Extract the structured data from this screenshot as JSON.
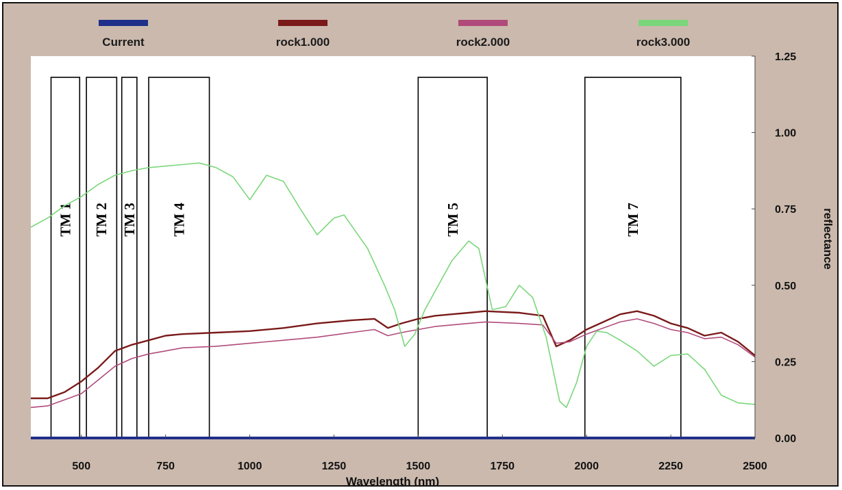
{
  "chart_data": {
    "type": "line",
    "xlabel": "Wavelength (nm)",
    "ylabel": "reflectance",
    "xlim": [
      350,
      2500
    ],
    "ylim": [
      0,
      1.25
    ],
    "x_ticks": [
      500,
      750,
      1000,
      1250,
      1500,
      1750,
      2000,
      2250,
      2500
    ],
    "x_tick_labels": [
      "500",
      "750",
      "1000",
      "1250",
      "1500",
      "1750",
      "2000",
      "2250",
      "2500"
    ],
    "y_ticks": [
      0,
      0.25,
      0.5,
      0.75,
      1.0,
      1.25
    ],
    "y_tick_labels": [
      "0.00",
      "0.25",
      "0.50",
      "0.75",
      "1.00",
      "1.25"
    ],
    "legend_position": "top",
    "series": [
      {
        "name": "Current",
        "color": "#1f2f8a",
        "points": [
          [
            350,
            0.0
          ],
          [
            2500,
            0.0
          ]
        ]
      },
      {
        "name": "rock1.000",
        "color": "#7a1a1a",
        "points": [
          [
            350,
            0.13
          ],
          [
            400,
            0.13
          ],
          [
            450,
            0.15
          ],
          [
            500,
            0.185
          ],
          [
            550,
            0.23
          ],
          [
            600,
            0.285
          ],
          [
            650,
            0.305
          ],
          [
            700,
            0.32
          ],
          [
            750,
            0.335
          ],
          [
            800,
            0.34
          ],
          [
            900,
            0.345
          ],
          [
            1000,
            0.35
          ],
          [
            1100,
            0.36
          ],
          [
            1200,
            0.375
          ],
          [
            1300,
            0.385
          ],
          [
            1370,
            0.39
          ],
          [
            1410,
            0.36
          ],
          [
            1450,
            0.375
          ],
          [
            1500,
            0.39
          ],
          [
            1550,
            0.4
          ],
          [
            1600,
            0.405
          ],
          [
            1650,
            0.41
          ],
          [
            1700,
            0.415
          ],
          [
            1800,
            0.41
          ],
          [
            1870,
            0.4
          ],
          [
            1910,
            0.3
          ],
          [
            1950,
            0.32
          ],
          [
            2000,
            0.355
          ],
          [
            2050,
            0.38
          ],
          [
            2100,
            0.405
          ],
          [
            2150,
            0.415
          ],
          [
            2200,
            0.4
          ],
          [
            2250,
            0.375
          ],
          [
            2300,
            0.36
          ],
          [
            2350,
            0.335
          ],
          [
            2400,
            0.345
          ],
          [
            2450,
            0.315
          ],
          [
            2500,
            0.27
          ]
        ]
      },
      {
        "name": "rock2.000",
        "color": "#b04a7a",
        "points": [
          [
            350,
            0.1
          ],
          [
            400,
            0.105
          ],
          [
            450,
            0.125
          ],
          [
            500,
            0.145
          ],
          [
            550,
            0.19
          ],
          [
            600,
            0.235
          ],
          [
            650,
            0.26
          ],
          [
            700,
            0.275
          ],
          [
            750,
            0.285
          ],
          [
            800,
            0.295
          ],
          [
            900,
            0.3
          ],
          [
            1000,
            0.31
          ],
          [
            1100,
            0.32
          ],
          [
            1200,
            0.33
          ],
          [
            1300,
            0.345
          ],
          [
            1370,
            0.355
          ],
          [
            1410,
            0.335
          ],
          [
            1450,
            0.345
          ],
          [
            1500,
            0.355
          ],
          [
            1550,
            0.365
          ],
          [
            1600,
            0.37
          ],
          [
            1650,
            0.375
          ],
          [
            1700,
            0.38
          ],
          [
            1800,
            0.375
          ],
          [
            1870,
            0.37
          ],
          [
            1910,
            0.31
          ],
          [
            1950,
            0.315
          ],
          [
            2000,
            0.34
          ],
          [
            2050,
            0.36
          ],
          [
            2100,
            0.38
          ],
          [
            2150,
            0.39
          ],
          [
            2200,
            0.375
          ],
          [
            2250,
            0.355
          ],
          [
            2300,
            0.345
          ],
          [
            2350,
            0.325
          ],
          [
            2400,
            0.33
          ],
          [
            2450,
            0.305
          ],
          [
            2500,
            0.265
          ]
        ]
      },
      {
        "name": "rock3.000",
        "color": "#7ad67a",
        "points": [
          [
            350,
            0.69
          ],
          [
            400,
            0.72
          ],
          [
            450,
            0.76
          ],
          [
            500,
            0.79
          ],
          [
            550,
            0.83
          ],
          [
            600,
            0.86
          ],
          [
            650,
            0.875
          ],
          [
            700,
            0.885
          ],
          [
            750,
            0.89
          ],
          [
            800,
            0.895
          ],
          [
            850,
            0.9
          ],
          [
            900,
            0.885
          ],
          [
            950,
            0.855
          ],
          [
            1000,
            0.78
          ],
          [
            1050,
            0.86
          ],
          [
            1100,
            0.84
          ],
          [
            1150,
            0.75
          ],
          [
            1200,
            0.665
          ],
          [
            1250,
            0.72
          ],
          [
            1280,
            0.73
          ],
          [
            1350,
            0.62
          ],
          [
            1400,
            0.5
          ],
          [
            1430,
            0.42
          ],
          [
            1460,
            0.3
          ],
          [
            1490,
            0.34
          ],
          [
            1520,
            0.42
          ],
          [
            1560,
            0.5
          ],
          [
            1600,
            0.58
          ],
          [
            1650,
            0.645
          ],
          [
            1680,
            0.62
          ],
          [
            1720,
            0.42
          ],
          [
            1760,
            0.43
          ],
          [
            1800,
            0.5
          ],
          [
            1840,
            0.46
          ],
          [
            1880,
            0.33
          ],
          [
            1920,
            0.12
          ],
          [
            1940,
            0.1
          ],
          [
            1970,
            0.18
          ],
          [
            2000,
            0.3
          ],
          [
            2030,
            0.35
          ],
          [
            2060,
            0.345
          ],
          [
            2100,
            0.32
          ],
          [
            2150,
            0.285
          ],
          [
            2200,
            0.235
          ],
          [
            2250,
            0.27
          ],
          [
            2300,
            0.275
          ],
          [
            2350,
            0.225
          ],
          [
            2400,
            0.14
          ],
          [
            2450,
            0.115
          ],
          [
            2500,
            0.11
          ]
        ]
      }
    ],
    "bands": [
      {
        "label": "TM 1",
        "from": 410,
        "to": 495
      },
      {
        "label": "TM 2",
        "from": 515,
        "to": 605
      },
      {
        "label": "TM 3",
        "from": 620,
        "to": 665
      },
      {
        "label": "TM 4",
        "from": 700,
        "to": 880
      },
      {
        "label": "TM 5",
        "from": 1500,
        "to": 1705
      },
      {
        "label": "TM 7",
        "from": 1995,
        "to": 2280
      }
    ]
  }
}
